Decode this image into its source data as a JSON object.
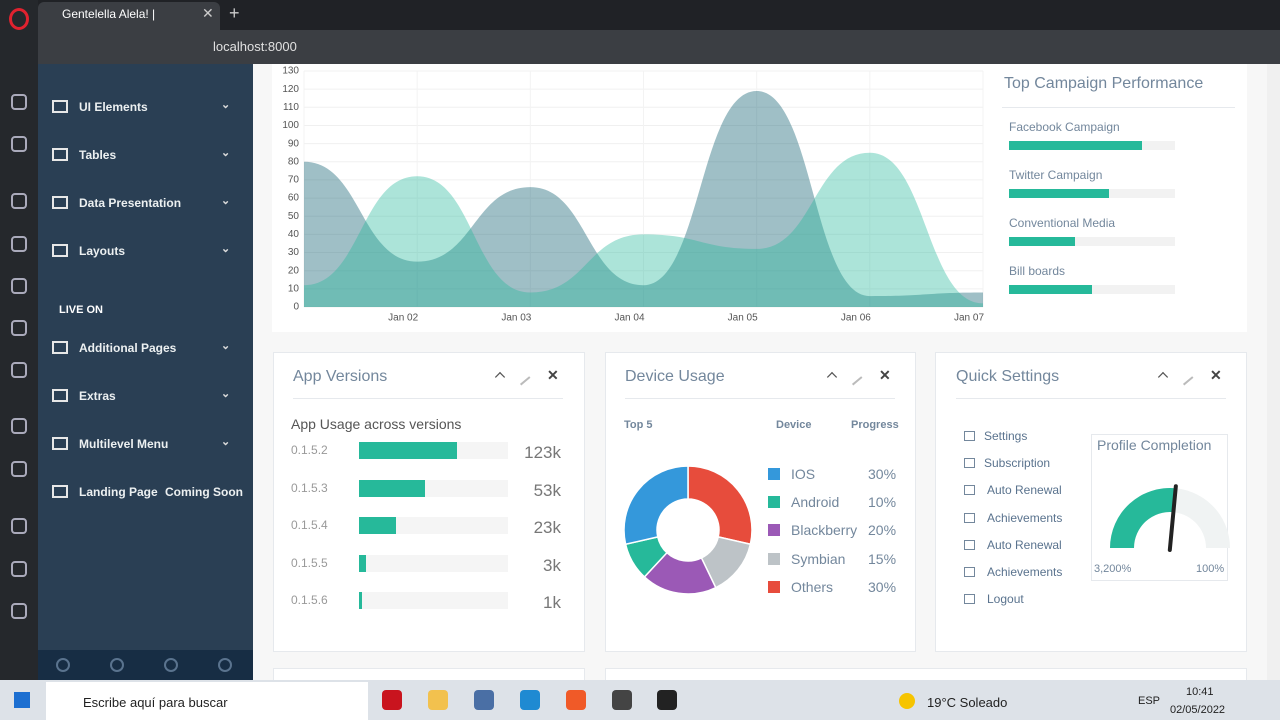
{
  "browser": {
    "tab_title": "Gentelella Alela! |",
    "url": "localhost:8000"
  },
  "sidebar": {
    "items": [
      "UI Elements",
      "Tables",
      "Data Presentation",
      "Layouts"
    ],
    "section": "LIVE ON",
    "live_items": [
      "Additional Pages",
      "Extras",
      "Multilevel Menu",
      "Landing Page"
    ],
    "badge": "Coming Soon"
  },
  "chart_data": {
    "type": "area",
    "categories": [
      null,
      "Jan 02",
      "Jan 03",
      "Jan 04",
      "Jan 05",
      "Jan 06",
      "Jan 07"
    ],
    "series": [
      {
        "color": "rgba(3,88,106,0.38)",
        "values": [
          80,
          25,
          66,
          12,
          119,
          6,
          8
        ]
      },
      {
        "color": "rgba(38,185,154,0.38)",
        "values": [
          12,
          72,
          8,
          40,
          32,
          85,
          2
        ]
      }
    ],
    "ylim": [
      0,
      130
    ],
    "yticks": [
      0,
      10,
      20,
      30,
      40,
      50,
      60,
      70,
      80,
      90,
      100,
      110,
      120,
      130
    ],
    "grid": true
  },
  "campaigns": {
    "title": "Top Campaign Performance",
    "color": "#26B99A",
    "items": [
      {
        "name": "Facebook Campaign",
        "value": 80
      },
      {
        "name": "Twitter Campaign",
        "value": 60
      },
      {
        "name": "Conventional Media",
        "value": 40
      },
      {
        "name": "Bill boards",
        "value": 50
      }
    ]
  },
  "app_versions": {
    "title": "App Versions",
    "subtitle": "App Usage across versions",
    "color": "#26B99A",
    "rows": [
      {
        "version": "0.1.5.2",
        "progress": 66,
        "count": "123k"
      },
      {
        "version": "0.1.5.3",
        "progress": 44,
        "count": "53k"
      },
      {
        "version": "0.1.5.4",
        "progress": 25,
        "count": "23k"
      },
      {
        "version": "0.1.5.5",
        "progress": 5,
        "count": "3k"
      },
      {
        "version": "0.1.5.6",
        "progress": 2,
        "count": "1k"
      }
    ]
  },
  "device_usage": {
    "title": "Device Usage",
    "col_top": "Top 5",
    "col_device": "Device",
    "col_progress": "Progress",
    "items": [
      {
        "name": "IOS",
        "color": "#3498DB",
        "value": 30,
        "label": "30%"
      },
      {
        "name": "Android",
        "color": "#26B99A",
        "value": 10,
        "label": "10%"
      },
      {
        "name": "Blackberry",
        "color": "#9B59B6",
        "value": 20,
        "label": "20%"
      },
      {
        "name": "Symbian",
        "color": "#BDC3C7",
        "value": 15,
        "label": "15%"
      },
      {
        "name": "Others",
        "color": "#E74C3C",
        "value": 30,
        "label": "30%"
      }
    ]
  },
  "quick_settings": {
    "title": "Quick Settings",
    "items": [
      "Settings",
      "Subscription",
      "Auto Renewal",
      "Achievements",
      "Auto Renewal",
      "Achievements",
      "Logout"
    ],
    "profile": {
      "title": "Profile Completion",
      "value": 53,
      "lim": [
        0,
        100
      ],
      "color": "#26B99A",
      "min_label": "3,200%",
      "max_label": "100%"
    }
  },
  "taskbar": {
    "search": "Escribe aquí para buscar",
    "weather": "19°C Soleado",
    "lang": "ESP",
    "time": "10:41",
    "date": "02/05/2022"
  }
}
